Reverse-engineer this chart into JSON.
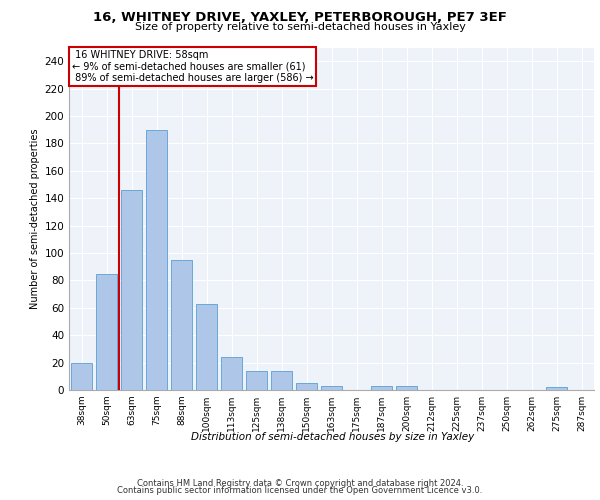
{
  "title1": "16, WHITNEY DRIVE, YAXLEY, PETERBOROUGH, PE7 3EF",
  "title2": "Size of property relative to semi-detached houses in Yaxley",
  "xlabel": "Distribution of semi-detached houses by size in Yaxley",
  "ylabel": "Number of semi-detached properties",
  "categories": [
    "38sqm",
    "50sqm",
    "63sqm",
    "75sqm",
    "88sqm",
    "100sqm",
    "113sqm",
    "125sqm",
    "138sqm",
    "150sqm",
    "163sqm",
    "175sqm",
    "187sqm",
    "200sqm",
    "212sqm",
    "225sqm",
    "237sqm",
    "250sqm",
    "262sqm",
    "275sqm",
    "287sqm"
  ],
  "values": [
    20,
    85,
    146,
    190,
    95,
    63,
    24,
    14,
    14,
    5,
    3,
    0,
    3,
    3,
    0,
    0,
    0,
    0,
    0,
    2,
    0
  ],
  "bar_color": "#aec6e8",
  "bar_edge_color": "#5a9fd4",
  "vline_x": 1.5,
  "vline_label": "16 WHITNEY DRIVE: 58sqm",
  "smaller_pct": "9% of semi-detached houses are smaller (61)",
  "larger_pct": "89% of semi-detached houses are larger (586)",
  "annotation_box_color": "#ffffff",
  "annotation_box_edgecolor": "#cc0000",
  "vline_color": "#cc0000",
  "ylim": [
    0,
    250
  ],
  "yticks": [
    0,
    20,
    40,
    60,
    80,
    100,
    120,
    140,
    160,
    180,
    200,
    220,
    240
  ],
  "footer1": "Contains HM Land Registry data © Crown copyright and database right 2024.",
  "footer2": "Contains public sector information licensed under the Open Government Licence v3.0.",
  "background_color": "#eef2f9",
  "grid_color": "#ffffff"
}
